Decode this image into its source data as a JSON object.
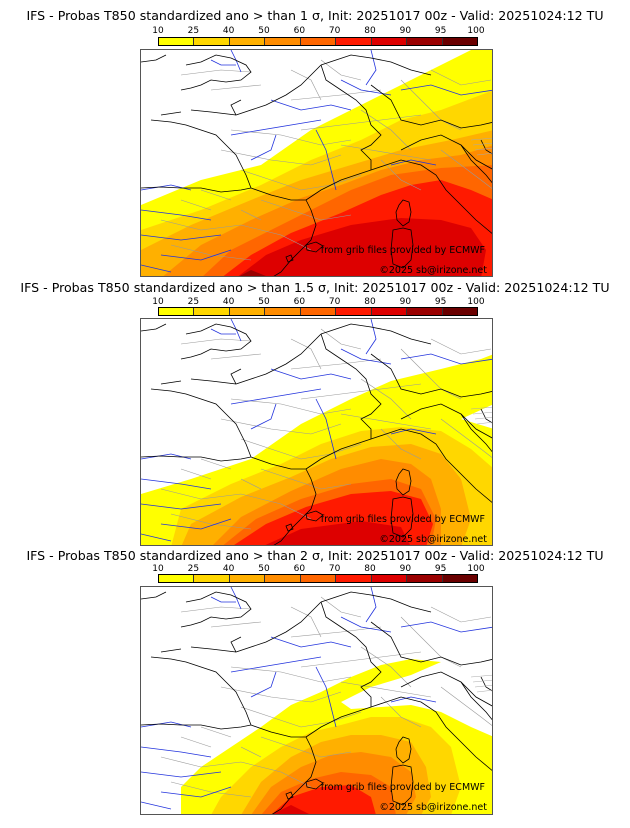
{
  "panels": [
    {
      "title": "IFS - Probas T850  standardized ano > than 1 σ, Init: 20251017 00z - Valid: 20251024:12 TU",
      "threshold_sigma": 1,
      "credit_source": "from grib files provided by ECMWF",
      "credit_copyright": "©2025 sb@irizone.net"
    },
    {
      "title": "IFS - Probas T850  standardized ano > than 1.5 σ, Init: 20251017 00z - Valid: 20251024:12 TU",
      "threshold_sigma": 1.5,
      "credit_source": "from grib files provided by ECMWF",
      "credit_copyright": "©2025 sb@irizone.net"
    },
    {
      "title": "IFS - Probas T850  standardized ano > than 2 σ, Init: 20251017 00z - Valid: 20251024:12 TU",
      "threshold_sigma": 2,
      "credit_source": "from grib files provided by ECMWF",
      "credit_copyright": "©2025 sb@irizone.net"
    }
  ],
  "colorbar": {
    "ticks": [
      "10",
      "25",
      "40",
      "50",
      "60",
      "70",
      "80",
      "90",
      "95",
      "100"
    ],
    "colors": [
      "#ffff00",
      "#ffd700",
      "#ffb000",
      "#ff8c00",
      "#ff6600",
      "#ff1a00",
      "#dd0000",
      "#9a0000",
      "#6a0000"
    ]
  },
  "map_colors": {
    "coast": "#000000",
    "border": "#9a9a9a",
    "river": "#2233dd"
  }
}
